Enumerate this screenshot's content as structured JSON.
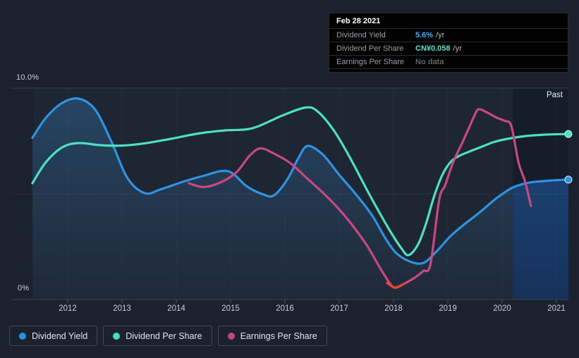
{
  "tooltip": {
    "date": "Feb 28 2021",
    "rows": [
      {
        "label": "Dividend Yield",
        "value": "5.6%",
        "unit": "/yr",
        "value_color": "#38b2f8"
      },
      {
        "label": "Dividend Per Share",
        "value": "CN¥0.058",
        "unit": "/yr",
        "value_color": "#4fe3c5"
      },
      {
        "label": "Earnings Per Share",
        "value": "No data",
        "unit": "",
        "value_color": "#5d6369"
      }
    ]
  },
  "chart": {
    "past_label": "Past"
  },
  "legend": {
    "items": [
      {
        "label": "Dividend Yield",
        "color": "#2196e0"
      },
      {
        "label": "Dividend Per Share",
        "color": "#44dfbd"
      },
      {
        "label": "Earnings Per Share",
        "color": "#c9457f"
      }
    ]
  },
  "chart_data": {
    "type": "line",
    "title": "Dividend history",
    "x_ticks": [
      "2012",
      "2013",
      "2014",
      "2015",
      "2016",
      "2017",
      "2018",
      "2019",
      "2020",
      "2021"
    ],
    "x_range": [
      2011.35,
      2021.22
    ],
    "y_axis": {
      "min": 0,
      "max": 10,
      "top_label": "10.0%",
      "bottom_label": "0%",
      "gridline_pcts": [
        10,
        5,
        0
      ]
    },
    "past_region": {
      "start_year": 2020.2,
      "end_year": 2021.22,
      "label": "Past"
    },
    "legend_position": "bottom-left",
    "series": [
      {
        "id": "dividend_yield",
        "name": "Dividend Yield",
        "color": "#2d93e2",
        "area_fill": true,
        "end_dot": true,
        "unit": "percent_yield",
        "points": [
          [
            2011.35,
            7.65
          ],
          [
            2011.6,
            8.6
          ],
          [
            2011.9,
            9.3
          ],
          [
            2012.2,
            9.5
          ],
          [
            2012.5,
            9.0
          ],
          [
            2012.8,
            7.5
          ],
          [
            2013.1,
            5.75
          ],
          [
            2013.42,
            5.03
          ],
          [
            2013.7,
            5.2
          ],
          [
            2014.1,
            5.55
          ],
          [
            2014.5,
            5.85
          ],
          [
            2014.95,
            6.07
          ],
          [
            2015.3,
            5.35
          ],
          [
            2015.6,
            4.97
          ],
          [
            2015.8,
            4.93
          ],
          [
            2016.05,
            5.7
          ],
          [
            2016.25,
            6.7
          ],
          [
            2016.42,
            7.27
          ],
          [
            2016.7,
            6.85
          ],
          [
            2017.0,
            5.9
          ],
          [
            2017.3,
            5.0
          ],
          [
            2017.6,
            4.0
          ],
          [
            2017.85,
            2.9
          ],
          [
            2018.05,
            2.2
          ],
          [
            2018.3,
            1.8
          ],
          [
            2018.55,
            1.73
          ],
          [
            2018.8,
            2.3
          ],
          [
            2019.05,
            3.0
          ],
          [
            2019.3,
            3.55
          ],
          [
            2019.6,
            4.15
          ],
          [
            2019.9,
            4.8
          ],
          [
            2020.2,
            5.3
          ],
          [
            2020.5,
            5.53
          ],
          [
            2020.9,
            5.63
          ],
          [
            2021.22,
            5.67
          ]
        ]
      },
      {
        "id": "dividend_per_share",
        "name": "Dividend Per Share",
        "color": "#4de0c2",
        "area_fill": false,
        "end_dot": true,
        "unit": "normalized",
        "points": [
          [
            2011.35,
            5.5
          ],
          [
            2011.6,
            6.5
          ],
          [
            2011.9,
            7.2
          ],
          [
            2012.2,
            7.4
          ],
          [
            2012.6,
            7.3
          ],
          [
            2013.0,
            7.28
          ],
          [
            2013.4,
            7.38
          ],
          [
            2013.9,
            7.6
          ],
          [
            2014.4,
            7.85
          ],
          [
            2014.9,
            8.0
          ],
          [
            2015.4,
            8.1
          ],
          [
            2015.95,
            8.7
          ],
          [
            2016.38,
            9.08
          ],
          [
            2016.6,
            8.9
          ],
          [
            2016.9,
            8.0
          ],
          [
            2017.2,
            6.7
          ],
          [
            2017.55,
            5.0
          ],
          [
            2017.9,
            3.4
          ],
          [
            2018.15,
            2.4
          ],
          [
            2018.28,
            2.1
          ],
          [
            2018.45,
            2.6
          ],
          [
            2018.6,
            3.6
          ],
          [
            2018.75,
            4.9
          ],
          [
            2018.9,
            5.9
          ],
          [
            2019.05,
            6.5
          ],
          [
            2019.2,
            6.78
          ],
          [
            2019.4,
            7.0
          ],
          [
            2019.6,
            7.2
          ],
          [
            2019.85,
            7.45
          ],
          [
            2020.1,
            7.6
          ],
          [
            2020.4,
            7.72
          ],
          [
            2020.8,
            7.8
          ],
          [
            2021.22,
            7.83
          ]
        ]
      },
      {
        "id": "earnings_per_share",
        "name": "Earnings Per Share",
        "color": "#ca4781",
        "area_fill": false,
        "end_dot": false,
        "unit": "normalized",
        "points": [
          [
            2014.23,
            5.5
          ],
          [
            2014.5,
            5.32
          ],
          [
            2014.8,
            5.52
          ],
          [
            2015.1,
            6.0
          ],
          [
            2015.35,
            6.8
          ],
          [
            2015.55,
            7.15
          ],
          [
            2015.8,
            6.9
          ],
          [
            2016.1,
            6.45
          ],
          [
            2016.4,
            5.75
          ],
          [
            2016.7,
            5.05
          ],
          [
            2016.95,
            4.4
          ],
          [
            2017.2,
            3.65
          ],
          [
            2017.5,
            2.6
          ],
          [
            2017.75,
            1.5
          ],
          [
            2017.95,
            0.7
          ],
          [
            2018.05,
            0.57
          ],
          [
            2018.2,
            0.75
          ],
          [
            2018.4,
            1.05
          ],
          [
            2018.55,
            1.35
          ],
          [
            2018.68,
            1.67
          ],
          [
            2018.84,
            4.7
          ],
          [
            2018.95,
            5.4
          ],
          [
            2019.1,
            6.5
          ],
          [
            2019.3,
            7.6
          ],
          [
            2019.5,
            8.75
          ],
          [
            2019.57,
            9.0
          ],
          [
            2019.72,
            8.85
          ],
          [
            2019.9,
            8.6
          ],
          [
            2020.05,
            8.45
          ],
          [
            2020.17,
            8.2
          ],
          [
            2020.3,
            6.5
          ],
          [
            2020.42,
            5.6
          ],
          [
            2020.53,
            4.43
          ]
        ]
      },
      {
        "id": "eps_negative_segment",
        "name": "Earnings Per Share (low segment)",
        "color": "#e8432d",
        "area_fill": false,
        "end_dot": false,
        "overlay": true,
        "unit": "normalized",
        "points": [
          [
            2017.88,
            0.78
          ],
          [
            2018.0,
            0.58
          ],
          [
            2018.05,
            0.57
          ],
          [
            2018.18,
            0.72
          ]
        ]
      }
    ]
  }
}
